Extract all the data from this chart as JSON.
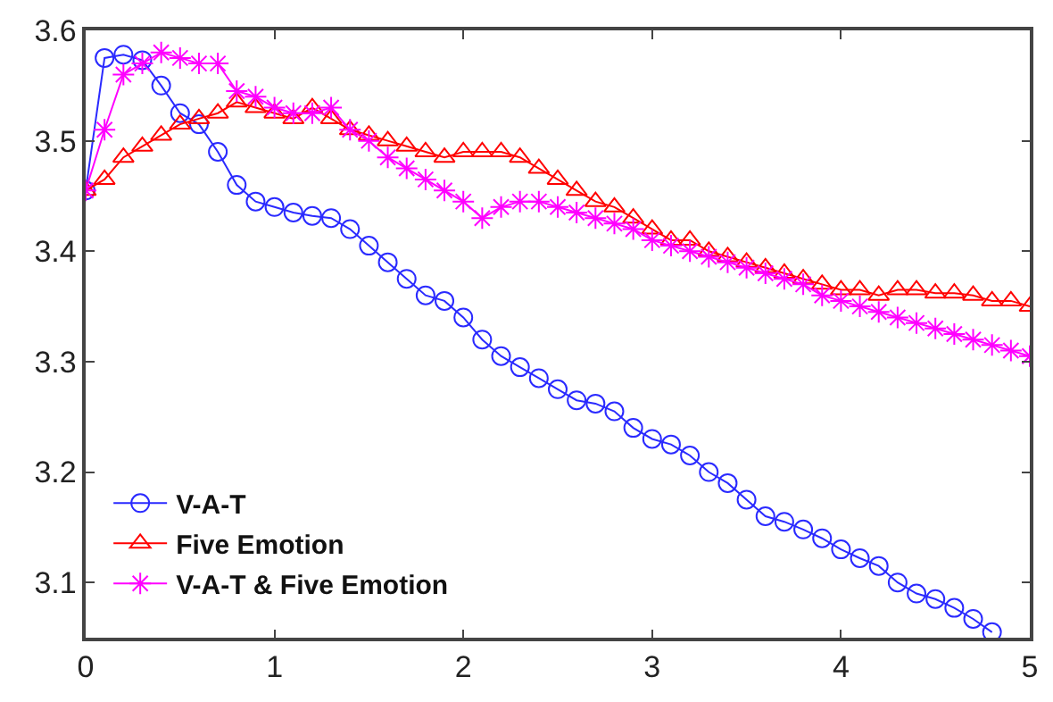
{
  "chart_data": {
    "type": "line",
    "x": [
      0,
      0.1,
      0.2,
      0.3,
      0.4,
      0.5,
      0.6,
      0.7,
      0.8,
      0.9,
      1.0,
      1.1,
      1.2,
      1.3,
      1.4,
      1.5,
      1.6,
      1.7,
      1.8,
      1.9,
      2.0,
      2.1,
      2.2,
      2.3,
      2.4,
      2.5,
      2.6,
      2.7,
      2.8,
      2.9,
      3.0,
      3.1,
      3.2,
      3.3,
      3.4,
      3.5,
      3.6,
      3.7,
      3.8,
      3.9,
      4.0,
      4.1,
      4.2,
      4.3,
      4.4,
      4.5,
      4.6,
      4.7,
      4.8,
      4.9,
      5.0
    ],
    "series": [
      {
        "name": "V-A-T",
        "color": "#2a2aff",
        "marker": "circle",
        "values": [
          3.455,
          3.575,
          3.578,
          3.573,
          3.55,
          3.525,
          3.515,
          3.49,
          3.46,
          3.445,
          3.44,
          3.435,
          3.432,
          3.43,
          3.42,
          3.405,
          3.39,
          3.375,
          3.36,
          3.355,
          3.34,
          3.32,
          3.305,
          3.295,
          3.285,
          3.275,
          3.265,
          3.262,
          3.255,
          3.24,
          3.23,
          3.225,
          3.215,
          3.2,
          3.19,
          3.175,
          3.16,
          3.155,
          3.148,
          3.14,
          3.13,
          3.122,
          3.115,
          3.1,
          3.09,
          3.085,
          3.077,
          3.067,
          3.055,
          null,
          null
        ]
      },
      {
        "name": "Five Emotion",
        "color": "#ff0000",
        "marker": "triangle",
        "values": [
          3.455,
          3.465,
          3.485,
          3.495,
          3.505,
          3.515,
          3.52,
          3.525,
          3.535,
          3.53,
          3.525,
          3.52,
          3.53,
          3.52,
          3.51,
          3.505,
          3.5,
          3.495,
          3.49,
          3.485,
          3.49,
          3.49,
          3.49,
          3.485,
          3.475,
          3.465,
          3.455,
          3.445,
          3.44,
          3.43,
          3.42,
          3.41,
          3.41,
          3.4,
          3.395,
          3.39,
          3.385,
          3.38,
          3.375,
          3.37,
          3.365,
          3.365,
          3.36,
          3.365,
          3.365,
          3.362,
          3.362,
          3.36,
          3.355,
          3.355,
          3.35
        ]
      },
      {
        "name": "V-A-T & Five Emotion",
        "color": "#ff00ff",
        "marker": "cross",
        "values": [
          3.455,
          3.51,
          3.56,
          3.57,
          3.58,
          3.575,
          3.57,
          3.57,
          3.545,
          3.54,
          3.53,
          3.525,
          3.525,
          3.53,
          3.51,
          3.5,
          3.485,
          3.475,
          3.465,
          3.455,
          3.445,
          3.43,
          3.44,
          3.445,
          3.445,
          3.44,
          3.435,
          3.43,
          3.425,
          3.42,
          3.41,
          3.405,
          3.4,
          3.395,
          3.39,
          3.385,
          3.38,
          3.375,
          3.37,
          3.36,
          3.355,
          3.35,
          3.345,
          3.34,
          3.335,
          3.33,
          3.325,
          3.32,
          3.315,
          3.31,
          3.305
        ]
      }
    ],
    "xlim": [
      0,
      5
    ],
    "xticks": [
      0,
      1,
      2,
      3,
      4,
      5
    ],
    "ylim": [
      3.05,
      3.6
    ],
    "yticks": [
      3.1,
      3.2,
      3.3,
      3.4,
      3.5,
      3.6
    ],
    "line_style": "solid",
    "legend": "bottom left"
  }
}
